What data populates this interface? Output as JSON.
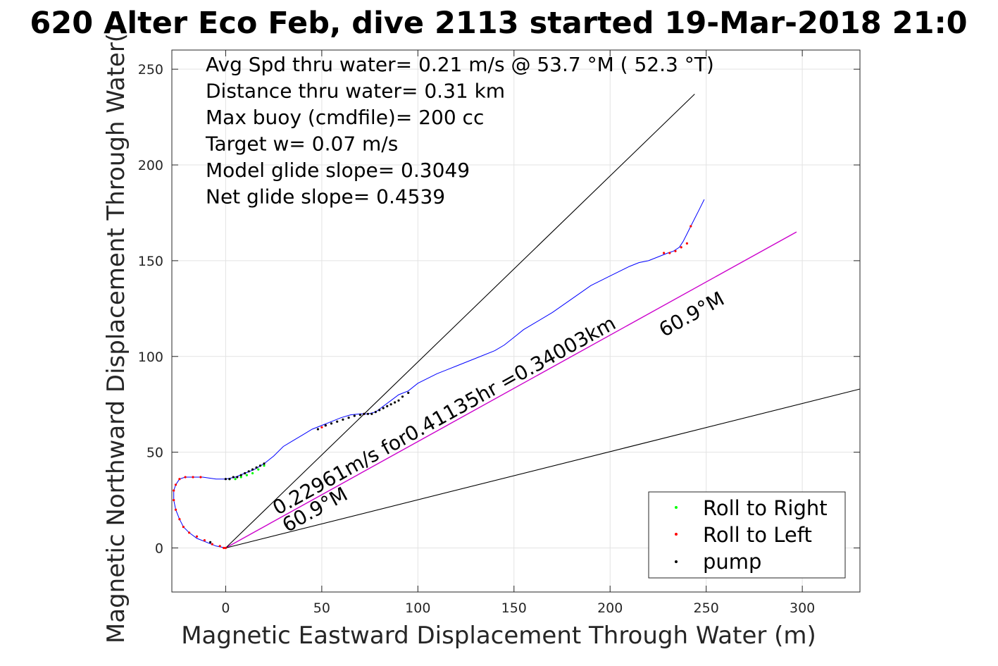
{
  "chart_data": {
    "type": "line",
    "title": "620 Alter Eco Feb, dive 2113 started 19-Mar-2018 21:0",
    "xlabel": "Magnetic Eastward Displacement Through Water (m)",
    "ylabel": "Magnetic Northward Displacement Through Water(",
    "xlim": [
      -28,
      330
    ],
    "ylim": [
      -23,
      260
    ],
    "xticks": [
      0,
      50,
      100,
      150,
      200,
      250,
      300
    ],
    "yticks": [
      0,
      50,
      100,
      150,
      200,
      250
    ],
    "grid": true,
    "legend_position": "bottom-right",
    "colors": {
      "track": "#0000ff",
      "roll_right": "#00ff00",
      "roll_left": "#ff0000",
      "pump": "#000000",
      "net_line": "#cc00cc",
      "envelope": "#000000",
      "grid": "#e3e3e3"
    },
    "info_lines": [
      "Avg Spd thru water=  0.21 m/s @  53.7 °M ( 52.3 °T)",
      "Distance thru water=  0.31 km",
      "Max buoy (cmdfile)= 200 cc",
      "Target w= 0.07 m/s",
      "Model glide slope= 0.3049",
      "Net glide slope= 0.4539"
    ],
    "annotations": {
      "speed_label": "0.22961m/s for0.41135hr =0.34003km",
      "heading_label_near": "60.9°M",
      "heading_label_far": "60.9°M"
    },
    "legend": [
      {
        "label": "Roll to Right",
        "color": "#00ff00"
      },
      {
        "label": "Roll to Left",
        "color": "#ff0000"
      },
      {
        "label": "pump",
        "color": "#000000"
      }
    ],
    "series": [
      {
        "name": "track",
        "x": [
          0,
          -5,
          -10,
          -15,
          -19,
          -22,
          -24,
          -26,
          -27,
          -27,
          -26,
          -24,
          -21,
          -17,
          -12,
          -5,
          0,
          5,
          10,
          15,
          20,
          25,
          30,
          35,
          40,
          45,
          50,
          55,
          60,
          65,
          70,
          74,
          78,
          82,
          86,
          90,
          95,
          100,
          110,
          120,
          130,
          140,
          145,
          150,
          155,
          160,
          170,
          180,
          190,
          200,
          210,
          215,
          220,
          225,
          230,
          233,
          236,
          238,
          240,
          242,
          244,
          246,
          249
        ],
        "y": [
          0,
          1,
          3,
          5,
          8,
          11,
          15,
          20,
          25,
          30,
          33,
          36,
          37,
          37,
          37,
          36,
          36,
          37,
          39,
          41,
          44,
          48,
          53,
          56,
          59,
          62,
          64,
          66,
          68,
          69.5,
          70,
          70,
          71,
          74,
          77,
          80,
          82,
          86,
          91,
          95,
          99,
          103,
          106,
          110,
          114,
          117,
          123,
          130,
          137,
          142,
          147,
          149,
          150,
          152,
          154,
          155,
          157,
          160,
          164,
          168,
          172,
          176,
          182
        ]
      },
      {
        "name": "net-direction",
        "x": [
          0,
          297
        ],
        "y": [
          0,
          165
        ]
      },
      {
        "name": "envelope-upper",
        "x": [
          0,
          244
        ],
        "y": [
          0,
          237
        ]
      },
      {
        "name": "envelope-lower",
        "x": [
          0,
          330
        ],
        "y": [
          0,
          83
        ]
      }
    ],
    "markers": {
      "roll_left": {
        "x": [
          0,
          -1,
          -3,
          -7,
          -11,
          -15,
          -19,
          -22,
          -24,
          -26,
          -27,
          -27,
          -26,
          -24,
          -21,
          -17,
          -13,
          50,
          52,
          72,
          228,
          231,
          234,
          237,
          240,
          242
        ],
        "y": [
          0,
          0,
          1,
          2,
          4,
          6,
          8,
          11,
          15,
          20,
          25,
          30,
          33,
          36,
          37,
          37,
          37,
          63,
          64,
          70,
          154,
          154,
          155,
          157,
          159,
          168
        ]
      },
      "roll_right": {
        "x": [
          2,
          5,
          8,
          11,
          14,
          17,
          20
        ],
        "y": [
          36,
          36,
          37,
          38,
          39,
          41,
          43
        ]
      },
      "pump": {
        "x": [
          -8,
          0,
          2,
          4,
          6,
          8,
          10,
          12,
          14,
          16,
          18,
          20,
          48,
          52,
          55,
          58,
          61,
          64,
          67,
          70,
          72,
          74,
          76,
          78,
          80,
          82,
          84,
          86,
          88,
          90,
          92,
          95
        ],
        "y": [
          3,
          36,
          36,
          37,
          37,
          38,
          39,
          40,
          41,
          42,
          43,
          44,
          62,
          64,
          65,
          66,
          67,
          68,
          69,
          69.5,
          70,
          70,
          70,
          71,
          72,
          73,
          74,
          75,
          76,
          77,
          79,
          81
        ]
      }
    }
  }
}
